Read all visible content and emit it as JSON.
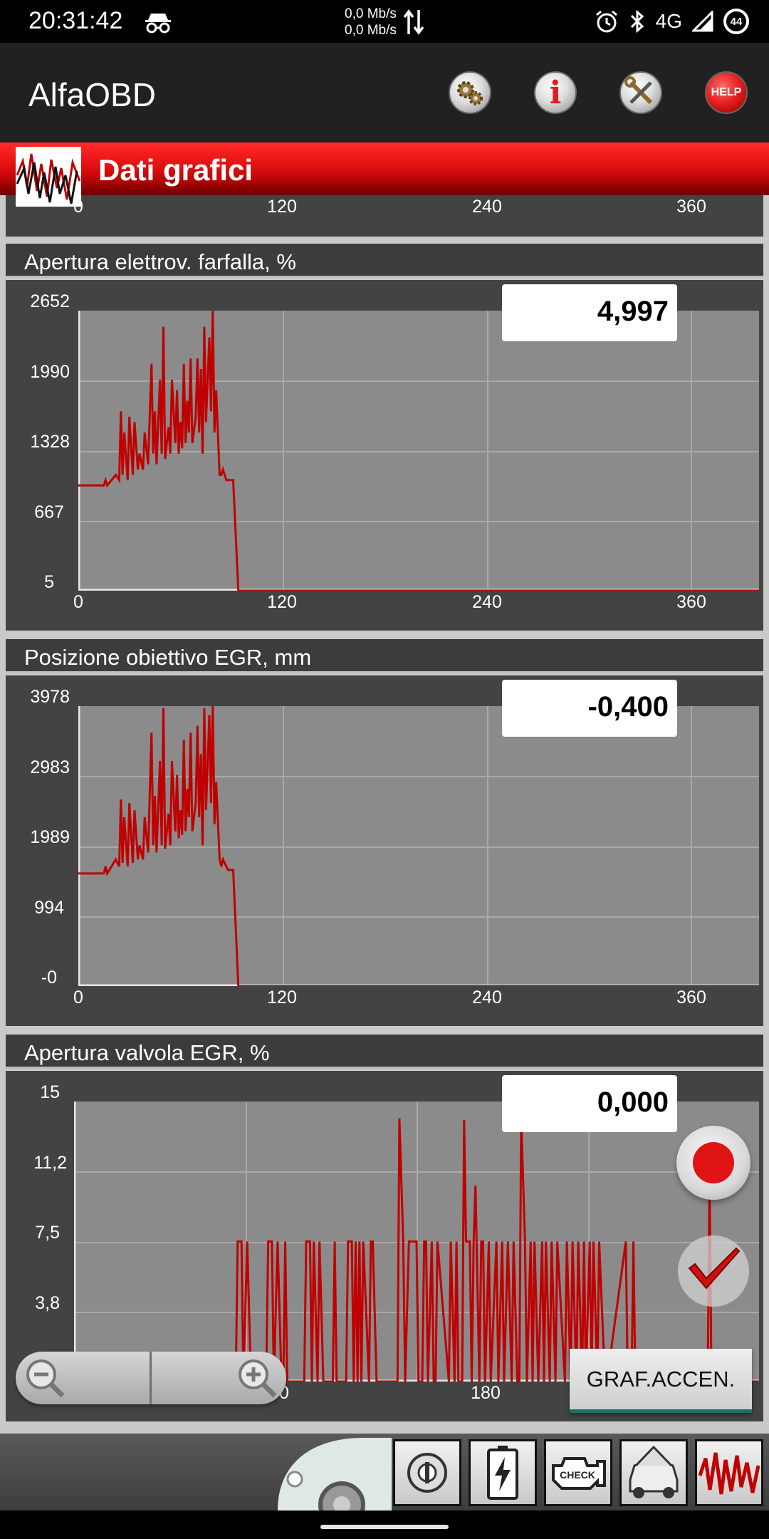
{
  "status_bar": {
    "time": "20:31:42",
    "net_up": "0,0 Mb/s",
    "net_down": "0,0 Mb/s",
    "network": "4G",
    "battery": "44"
  },
  "app_bar": {
    "title": "AlfaOBD",
    "help_label": "HELP"
  },
  "section": {
    "title": "Dati grafici"
  },
  "colors": {
    "trace": "#c00000",
    "plot_bg": "#8b8b8b",
    "header_red": "#e31010"
  },
  "top_partial_axis": {
    "x_ticks": [
      "0",
      "120",
      "240",
      "360"
    ]
  },
  "charts": [
    {
      "title": "Apertura elettrov. farfalla, %",
      "current_value": "4,997",
      "y_ticks": [
        "2652",
        "1990",
        "1328",
        "667",
        "5"
      ],
      "x_ticks": [
        "0",
        "120",
        "240",
        "360"
      ]
    },
    {
      "title": "Posizione obiettivo EGR, mm",
      "current_value": "-0,400",
      "y_ticks": [
        "3978",
        "2983",
        "1989",
        "994",
        "-0"
      ],
      "x_ticks": [
        "0",
        "120",
        "240",
        "360"
      ]
    },
    {
      "title": "Apertura valvola EGR, %",
      "current_value": "0,000",
      "y_ticks": [
        "15",
        "11,2",
        "7,5",
        "3,8"
      ],
      "x_ticks": [
        "0",
        "90",
        "180"
      ]
    }
  ],
  "chart_data": [
    {
      "type": "line",
      "title": "Apertura elettrov. farfalla, %",
      "ylim": [
        5,
        2652
      ],
      "xlim": [
        0,
        400
      ],
      "series": [
        {
          "x": [
            0,
            15,
            16,
            17,
            22,
            24,
            25,
            26,
            27,
            29,
            30,
            32,
            33,
            35,
            36,
            38,
            39,
            41,
            43,
            44,
            45,
            46,
            48,
            49,
            50,
            51,
            53,
            54,
            55,
            57,
            58,
            59,
            60,
            61,
            62,
            63,
            64,
            65,
            66,
            67,
            69,
            70,
            71,
            72,
            73,
            74,
            75,
            77,
            78,
            79,
            80,
            81,
            83,
            84,
            85,
            87,
            88,
            91,
            94,
            400
          ],
          "y": [
            1000,
            1000,
            1050,
            1000,
            1100,
            1050,
            1700,
            1100,
            1500,
            1050,
            1650,
            1100,
            1600,
            1150,
            1300,
            1150,
            1500,
            1200,
            2150,
            1300,
            1700,
            1200,
            2000,
            1300,
            2500,
            1250,
            1550,
            1300,
            2000,
            1400,
            1900,
            1300,
            1600,
            1350,
            2150,
            1400,
            1800,
            1500,
            2200,
            1400,
            1650,
            2200,
            1500,
            2100,
            1300,
            2500,
            1600,
            2400,
            1700,
            2650,
            1500,
            1900,
            1100,
            1100,
            1150,
            1050,
            1050,
            1050,
            5,
            5
          ]
        }
      ]
    },
    {
      "type": "line",
      "title": "Posizione obiettivo EGR, mm",
      "ylim": [
        0,
        3978
      ],
      "xlim": [
        0,
        400
      ],
      "series": [
        {
          "x": [
            0,
            15,
            16,
            17,
            22,
            24,
            25,
            26,
            27,
            29,
            30,
            32,
            33,
            35,
            36,
            38,
            39,
            41,
            43,
            44,
            45,
            46,
            48,
            49,
            50,
            51,
            53,
            54,
            55,
            57,
            58,
            59,
            60,
            61,
            62,
            63,
            64,
            65,
            66,
            67,
            69,
            70,
            71,
            72,
            73,
            74,
            75,
            77,
            78,
            79,
            80,
            81,
            83,
            84,
            85,
            87,
            88,
            91,
            94,
            400
          ],
          "y": [
            1600,
            1600,
            1700,
            1600,
            1800,
            1700,
            2650,
            1750,
            2400,
            1700,
            2600,
            1750,
            2500,
            1800,
            2000,
            1800,
            2400,
            1900,
            3600,
            2000,
            2700,
            1900,
            3200,
            2000,
            3950,
            1950,
            2450,
            2000,
            3200,
            2200,
            3000,
            2100,
            2500,
            2150,
            3500,
            2200,
            2800,
            2400,
            3600,
            2200,
            2600,
            3700,
            2400,
            3300,
            2000,
            3950,
            2500,
            3850,
            2600,
            3980,
            2300,
            2900,
            1800,
            1700,
            1800,
            1700,
            1650,
            1650,
            0,
            0
          ]
        }
      ]
    },
    {
      "type": "line",
      "title": "Apertura valvola EGR, %",
      "ylim": [
        0,
        15
      ],
      "xlim": [
        0,
        360
      ],
      "series": [
        {
          "x": [
            0,
            85,
            86,
            88,
            89,
            91,
            93,
            101,
            102,
            104,
            105,
            107,
            109,
            110,
            111,
            112,
            121,
            122,
            124,
            125,
            126,
            128,
            129,
            131,
            136,
            137,
            138,
            143,
            144,
            146,
            147,
            148,
            149,
            150,
            151,
            152,
            155,
            156,
            157,
            159,
            170,
            171,
            173,
            174,
            176,
            180,
            181,
            183,
            184,
            185,
            186,
            188,
            189,
            190,
            191,
            197,
            198,
            200,
            201,
            202,
            204,
            205,
            206,
            208,
            209,
            210,
            211,
            213,
            214,
            215,
            216,
            218,
            219,
            222,
            223,
            225,
            226,
            228,
            230,
            231,
            233,
            234,
            235,
            237,
            238,
            240,
            241,
            242,
            244,
            246,
            247,
            248,
            250,
            251,
            253,
            254,
            258,
            259,
            261,
            262,
            264,
            265,
            267,
            268,
            269,
            271,
            272,
            273,
            275,
            276,
            279,
            280,
            290,
            291,
            293,
            294,
            295,
            296,
            297,
            298,
            300,
            301,
            304,
            305,
            333,
            334,
            335,
            337,
            360
          ],
          "y": [
            0,
            0,
            7.5,
            7.5,
            0,
            7.5,
            0,
            0,
            7.5,
            7.5,
            0,
            7.5,
            0,
            0,
            7.5,
            0,
            0,
            7.5,
            7.5,
            0,
            7.5,
            0,
            7.5,
            0,
            0,
            7.5,
            0,
            0,
            7.5,
            7.5,
            0,
            7.5,
            0,
            7.5,
            0,
            7.5,
            0,
            7.5,
            7.5,
            0,
            0,
            14.1,
            7.5,
            0,
            7.5,
            7.5,
            0,
            0,
            7.5,
            7.5,
            0,
            7.5,
            0,
            0,
            7.5,
            0,
            7.5,
            0,
            7.5,
            0,
            0,
            14,
            7.5,
            7.5,
            0,
            7.5,
            10.5,
            0,
            7.5,
            7.5,
            0,
            7.5,
            0,
            7.5,
            0,
            7.5,
            0,
            7.5,
            0,
            7.5,
            0,
            0,
            14.1,
            7.5,
            0,
            7.5,
            0,
            7.5,
            0,
            7.5,
            0,
            7.5,
            0,
            7.5,
            0,
            7.5,
            0,
            7.5,
            0,
            7.5,
            0,
            7.5,
            0,
            7.5,
            0,
            7.5,
            0,
            7.5,
            0,
            7.5,
            0,
            0,
            7.5,
            0,
            0,
            7.5,
            0,
            0,
            0,
            0,
            0,
            0,
            0,
            0,
            0,
            11,
            0,
            0,
            0
          ]
        }
      ]
    }
  ],
  "controls": {
    "graph_button": "GRAF.ACCEN."
  },
  "bottom_bar": {
    "items": [
      "ignition-key",
      "battery",
      "check-engine",
      "car-hood",
      "graph-wave"
    ],
    "check_label": "CHECK"
  }
}
